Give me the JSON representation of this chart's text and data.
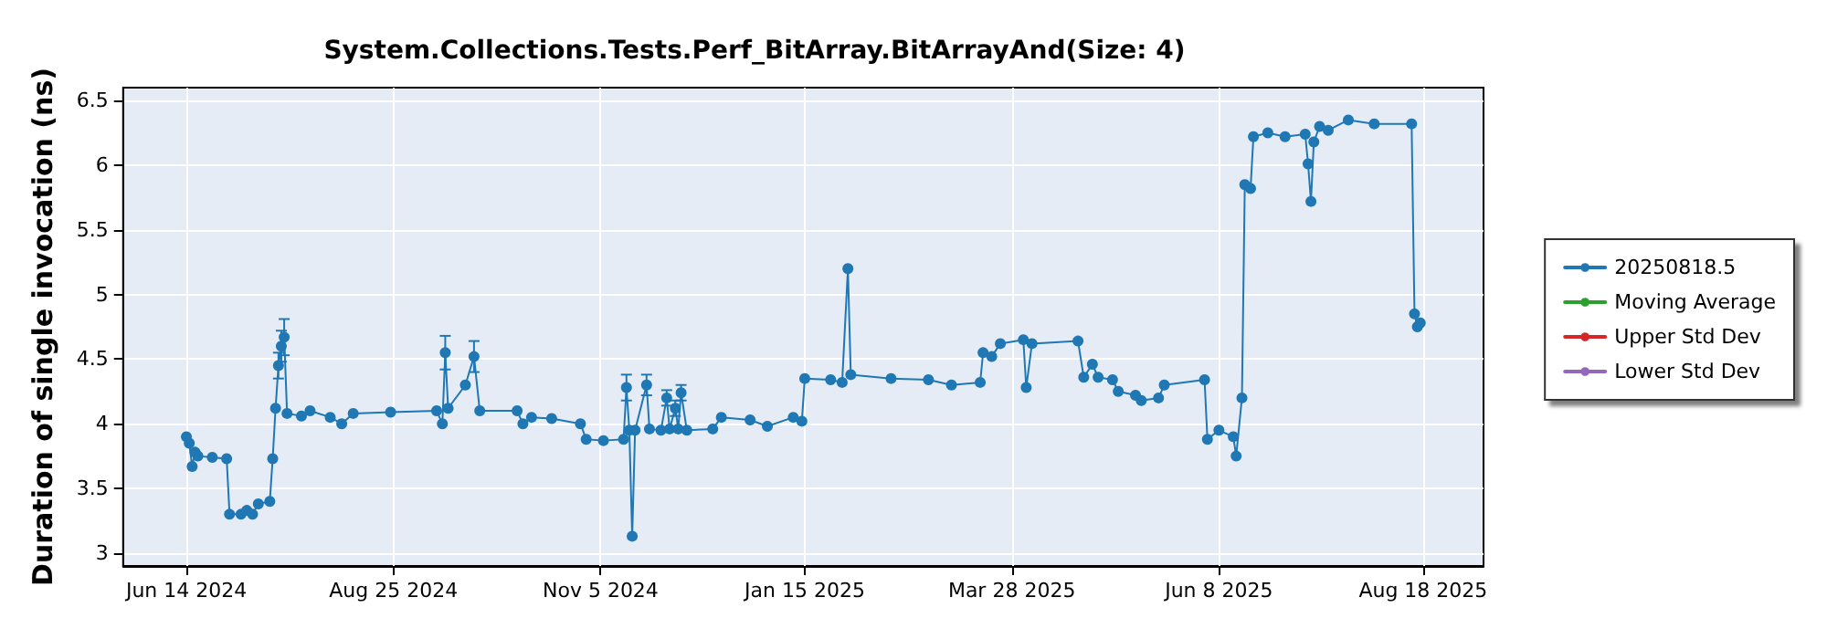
{
  "chart_data": {
    "type": "line",
    "title": "System.Collections.Tests.Perf_BitArray.BitArrayAnd(Size: 4)",
    "ylabel": "Duration of single invocation (ns)",
    "xlim": [
      "2024-05-23",
      "2025-09-08"
    ],
    "xticks": [
      {
        "value": "2024-06-14",
        "label": "Jun 14 2024"
      },
      {
        "value": "2024-08-25",
        "label": "Aug 25 2024"
      },
      {
        "value": "2024-11-05",
        "label": "Nov 5 2024"
      },
      {
        "value": "2025-01-15",
        "label": "Jan 15 2025"
      },
      {
        "value": "2025-03-28",
        "label": "Mar 28 2025"
      },
      {
        "value": "2025-06-08",
        "label": "Jun 8 2025"
      },
      {
        "value": "2025-08-18",
        "label": "Aug 18 2025"
      }
    ],
    "ylim": [
      2.9,
      6.6
    ],
    "yticks": [
      3,
      3.5,
      4,
      4.5,
      5,
      5.5,
      6,
      6.5
    ],
    "grid": true,
    "legend": "right",
    "marker": "circle",
    "line_style": "solid",
    "series": [
      {
        "name": "20250818.5",
        "color": "#1f77b4",
        "x": [
          "2024-06-14",
          "2024-06-15",
          "2024-06-16",
          "2024-06-17",
          "2024-06-18",
          "2024-06-23",
          "2024-06-28",
          "2024-06-29",
          "2024-07-03",
          "2024-07-05",
          "2024-07-07",
          "2024-07-09",
          "2024-07-13",
          "2024-07-14",
          "2024-07-15",
          "2024-07-16",
          "2024-07-17",
          "2024-07-18",
          "2024-07-19",
          "2024-07-24",
          "2024-07-27",
          "2024-08-03",
          "2024-08-07",
          "2024-08-11",
          "2024-08-24",
          "2024-09-09",
          "2024-09-11",
          "2024-09-12",
          "2024-09-13",
          "2024-09-19",
          "2024-09-22",
          "2024-09-24",
          "2024-10-07",
          "2024-10-09",
          "2024-10-12",
          "2024-10-19",
          "2024-10-29",
          "2024-10-31",
          "2024-11-06",
          "2024-11-13",
          "2024-11-14",
          "2024-11-15",
          "2024-11-16",
          "2024-11-17",
          "2024-11-21",
          "2024-11-22",
          "2024-11-26",
          "2024-11-28",
          "2024-11-29",
          "2024-12-01",
          "2024-12-02",
          "2024-12-03",
          "2024-12-05",
          "2024-12-14",
          "2024-12-17",
          "2024-12-27",
          "2025-01-02",
          "2025-01-11",
          "2025-01-14",
          "2025-01-15",
          "2025-01-24",
          "2025-01-28",
          "2025-01-30",
          "2025-01-31",
          "2025-02-14",
          "2025-02-27",
          "2025-03-07",
          "2025-03-17",
          "2025-03-18",
          "2025-03-21",
          "2025-03-24",
          "2025-04-01",
          "2025-04-02",
          "2025-04-04",
          "2025-04-20",
          "2025-04-22",
          "2025-04-25",
          "2025-04-27",
          "2025-05-02",
          "2025-05-04",
          "2025-05-10",
          "2025-05-12",
          "2025-05-18",
          "2025-05-20",
          "2025-06-03",
          "2025-06-04",
          "2025-06-08",
          "2025-06-13",
          "2025-06-14",
          "2025-06-16",
          "2025-06-17",
          "2025-06-19",
          "2025-06-20",
          "2025-06-25",
          "2025-07-01",
          "2025-07-08",
          "2025-07-09",
          "2025-07-10",
          "2025-07-11",
          "2025-07-13",
          "2025-07-16",
          "2025-07-23",
          "2025-08-01",
          "2025-08-14",
          "2025-08-15",
          "2025-08-16",
          "2025-08-17"
        ],
        "values": [
          3.9,
          3.85,
          3.67,
          3.78,
          3.75,
          3.74,
          3.73,
          3.3,
          3.3,
          3.33,
          3.3,
          3.38,
          3.4,
          3.73,
          4.12,
          4.45,
          4.6,
          4.67,
          4.08,
          4.06,
          4.1,
          4.05,
          4.0,
          4.08,
          4.09,
          4.1,
          4.0,
          4.55,
          4.12,
          4.3,
          4.52,
          4.1,
          4.1,
          4.0,
          4.05,
          4.04,
          4.0,
          3.88,
          3.87,
          3.88,
          4.28,
          3.95,
          3.13,
          3.95,
          4.3,
          3.96,
          3.95,
          4.2,
          3.96,
          4.12,
          3.96,
          4.24,
          3.95,
          3.96,
          4.05,
          4.03,
          3.98,
          4.05,
          4.02,
          4.35,
          4.34,
          4.32,
          5.2,
          4.38,
          4.35,
          4.34,
          4.3,
          4.32,
          4.55,
          4.52,
          4.62,
          4.65,
          4.28,
          4.62,
          4.64,
          4.36,
          4.46,
          4.36,
          4.34,
          4.25,
          4.22,
          4.18,
          4.2,
          4.3,
          4.34,
          3.88,
          3.95,
          3.9,
          3.75,
          4.2,
          5.85,
          5.82,
          6.22,
          6.25,
          6.22,
          6.24,
          6.01,
          5.72,
          6.18,
          6.3,
          6.27,
          6.35,
          6.32,
          6.32,
          4.85,
          4.75,
          4.78
        ],
        "errors": [
          null,
          null,
          null,
          null,
          null,
          null,
          null,
          null,
          null,
          null,
          null,
          null,
          null,
          null,
          null,
          0.1,
          0.12,
          0.14,
          null,
          null,
          null,
          null,
          null,
          null,
          null,
          null,
          null,
          0.13,
          null,
          null,
          0.12,
          null,
          null,
          null,
          null,
          null,
          null,
          null,
          null,
          null,
          0.1,
          null,
          null,
          null,
          0.08,
          null,
          null,
          0.06,
          null,
          0.06,
          null,
          0.06,
          null,
          null,
          null,
          null,
          null,
          null,
          null,
          null,
          null,
          null,
          null,
          null,
          null,
          null,
          null,
          null,
          null,
          null,
          null,
          null,
          null,
          null,
          null,
          null,
          null,
          null,
          null,
          null,
          null,
          null,
          null,
          null,
          null,
          null,
          null,
          null,
          null,
          null,
          null,
          null,
          null,
          null,
          null,
          null,
          null,
          null,
          null,
          null,
          null,
          null,
          null,
          null,
          null,
          null,
          null
        ]
      },
      {
        "name": "Moving Average",
        "color": "#2ca02c"
      },
      {
        "name": "Upper Std Dev",
        "color": "#d62728"
      },
      {
        "name": "Lower Std Dev",
        "color": "#9467bd"
      }
    ]
  }
}
